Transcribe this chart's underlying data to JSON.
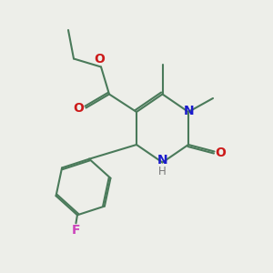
{
  "bg_color": "#edeee9",
  "bond_color": "#4a7a5a",
  "N_color": "#1a1acc",
  "O_color": "#cc1a1a",
  "F_color": "#cc44bb",
  "H_color": "#777777",
  "line_width": 1.5,
  "font_size_atoms": 10,
  "font_size_small": 8.5,
  "xlim": [
    0,
    10
  ],
  "ylim": [
    0,
    10
  ]
}
